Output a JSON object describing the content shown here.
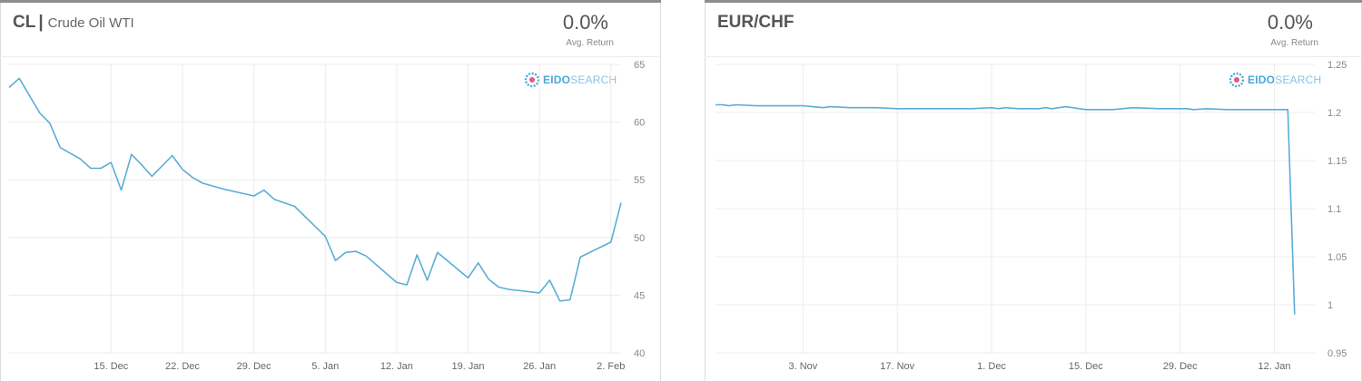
{
  "chart_data": [
    {
      "type": "line",
      "ticker": "CL",
      "separator": "|",
      "name": "Crude Oil WTI",
      "avg_return": "0.0%",
      "avg_return_label": "Avg. Return",
      "logo": {
        "bold": "EIDO",
        "light": "SEARCH"
      },
      "ylim": [
        40,
        65
      ],
      "yticks": [
        "65",
        "60",
        "55",
        "50",
        "45",
        "40"
      ],
      "yticks_values": [
        65,
        60,
        55,
        50,
        45,
        40
      ],
      "xlim": [
        "2014-12-05",
        "2015-02-03"
      ],
      "xticks": [
        {
          "date": "2014-12-15",
          "label": "15. Dec"
        },
        {
          "date": "2014-12-22",
          "label": "22. Dec"
        },
        {
          "date": "2014-12-29",
          "label": "29. Dec"
        },
        {
          "date": "2015-01-05",
          "label": "5. Jan"
        },
        {
          "date": "2015-01-12",
          "label": "12. Jan"
        },
        {
          "date": "2015-01-19",
          "label": "19. Jan"
        },
        {
          "date": "2015-01-26",
          "label": "26. Jan"
        },
        {
          "date": "2015-02-02",
          "label": "2. Feb"
        }
      ],
      "grid": true,
      "line_color": "#5aaed5",
      "x": [
        "2014-12-05",
        "2014-12-06",
        "2014-12-08",
        "2014-12-09",
        "2014-12-10",
        "2014-12-12",
        "2014-12-13",
        "2014-12-14",
        "2014-12-15",
        "2014-12-16",
        "2014-12-17",
        "2014-12-18",
        "2014-12-19",
        "2014-12-21",
        "2014-12-22",
        "2014-12-23",
        "2014-12-24",
        "2014-12-26",
        "2014-12-29",
        "2014-12-30",
        "2014-12-31",
        "2015-01-02",
        "2015-01-05",
        "2015-01-06",
        "2015-01-07",
        "2015-01-08",
        "2015-01-09",
        "2015-01-12",
        "2015-01-13",
        "2015-01-14",
        "2015-01-15",
        "2015-01-16",
        "2015-01-19",
        "2015-01-20",
        "2015-01-21",
        "2015-01-22",
        "2015-01-23",
        "2015-01-26",
        "2015-01-27",
        "2015-01-28",
        "2015-01-29",
        "2015-01-30",
        "2015-02-02",
        "2015-02-03"
      ],
      "y": [
        63.0,
        63.8,
        60.8,
        59.9,
        57.8,
        56.8,
        56.0,
        56.0,
        56.5,
        54.1,
        57.2,
        56.3,
        55.3,
        57.1,
        55.9,
        55.2,
        54.7,
        54.2,
        53.6,
        54.1,
        53.3,
        52.7,
        50.1,
        48.0,
        48.7,
        48.8,
        48.4,
        46.1,
        45.9,
        48.5,
        46.3,
        48.7,
        46.5,
        47.8,
        46.4,
        45.7,
        45.5,
        45.2,
        46.3,
        44.5,
        44.6,
        48.3,
        49.6,
        53.0
      ]
    },
    {
      "type": "line",
      "ticker": "EUR/CHF",
      "avg_return": "0.0%",
      "avg_return_label": "Avg. Return",
      "logo": {
        "bold": "EIDO",
        "light": "SEARCH"
      },
      "ylim": [
        0.95,
        1.25
      ],
      "yticks": [
        "1.25",
        "1.2",
        "1.15",
        "1.1",
        "1.05",
        "1",
        "0.95"
      ],
      "yticks_values": [
        1.25,
        1.2,
        1.15,
        1.1,
        1.05,
        1.0,
        0.95
      ],
      "xlim": [
        "2014-10-21",
        "2015-01-18"
      ],
      "xticks": [
        {
          "date": "2014-11-03",
          "label": "3. Nov"
        },
        {
          "date": "2014-11-17",
          "label": "17. Nov"
        },
        {
          "date": "2014-12-01",
          "label": "1. Dec"
        },
        {
          "date": "2014-12-15",
          "label": "15. Dec"
        },
        {
          "date": "2014-12-29",
          "label": "29. Dec"
        },
        {
          "date": "2015-01-12",
          "label": "12. Jan"
        }
      ],
      "grid": true,
      "line_color": "#5aaed5",
      "x": [
        "2014-10-21",
        "2014-10-22",
        "2014-10-23",
        "2014-10-24",
        "2014-10-27",
        "2014-10-30",
        "2014-11-03",
        "2014-11-06",
        "2014-11-07",
        "2014-11-10",
        "2014-11-14",
        "2014-11-17",
        "2014-11-20",
        "2014-11-24",
        "2014-11-28",
        "2014-12-01",
        "2014-12-02",
        "2014-12-03",
        "2014-12-05",
        "2014-12-08",
        "2014-12-09",
        "2014-12-10",
        "2014-12-12",
        "2014-12-15",
        "2014-12-19",
        "2014-12-22",
        "2014-12-26",
        "2014-12-29",
        "2014-12-30",
        "2014-12-31",
        "2015-01-02",
        "2015-01-05",
        "2015-01-08",
        "2015-01-12",
        "2015-01-14",
        "2015-01-15"
      ],
      "y": [
        1.208,
        1.208,
        1.207,
        1.208,
        1.207,
        1.207,
        1.207,
        1.205,
        1.206,
        1.205,
        1.205,
        1.204,
        1.204,
        1.204,
        1.204,
        1.205,
        1.204,
        1.205,
        1.204,
        1.204,
        1.205,
        1.204,
        1.206,
        1.203,
        1.203,
        1.205,
        1.204,
        1.204,
        1.204,
        1.203,
        1.204,
        1.203,
        1.203,
        1.203,
        1.203,
        0.99
      ]
    }
  ]
}
